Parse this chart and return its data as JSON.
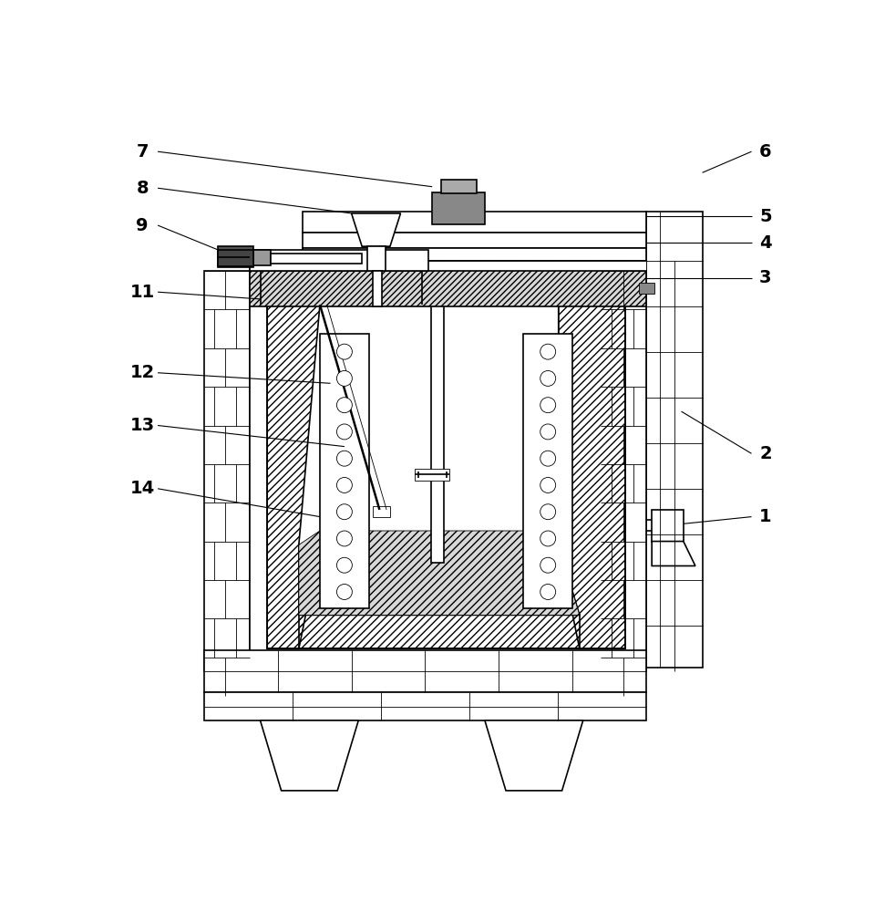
{
  "background_color": "#ffffff",
  "line_color": "#000000",
  "figsize": [
    9.71,
    10.0
  ],
  "dpi": 100,
  "label_fontsize": 14,
  "lw_main": 1.2,
  "lw_thin": 0.6,
  "lw_leader": 0.8
}
